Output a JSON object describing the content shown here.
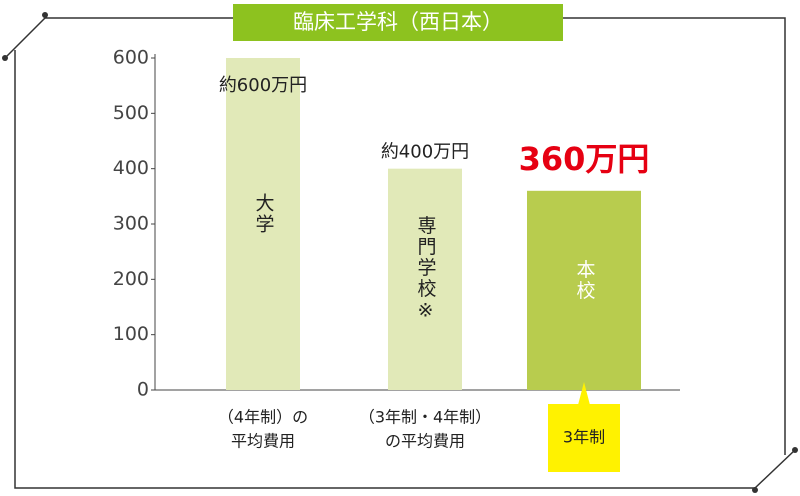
{
  "chart_data": {
    "type": "bar",
    "title": "臨床工学科（西日本）",
    "categories": [
      "大学",
      "専門学校※",
      "本校"
    ],
    "sublabels": [
      [
        "（4年制）の",
        "平均費用"
      ],
      [
        "（3年制・4年制）",
        "の平均費用"
      ],
      [
        "3年制"
      ]
    ],
    "values": [
      600,
      400,
      360
    ],
    "value_labels": [
      "約600万円",
      "約400万円",
      "360万円"
    ],
    "colors": [
      "#e1e9b8",
      "#e1e9b8",
      "#b8cc4e"
    ],
    "ylim": [
      0,
      600
    ],
    "yticks": [
      0,
      100,
      200,
      300,
      400,
      500,
      600
    ]
  }
}
